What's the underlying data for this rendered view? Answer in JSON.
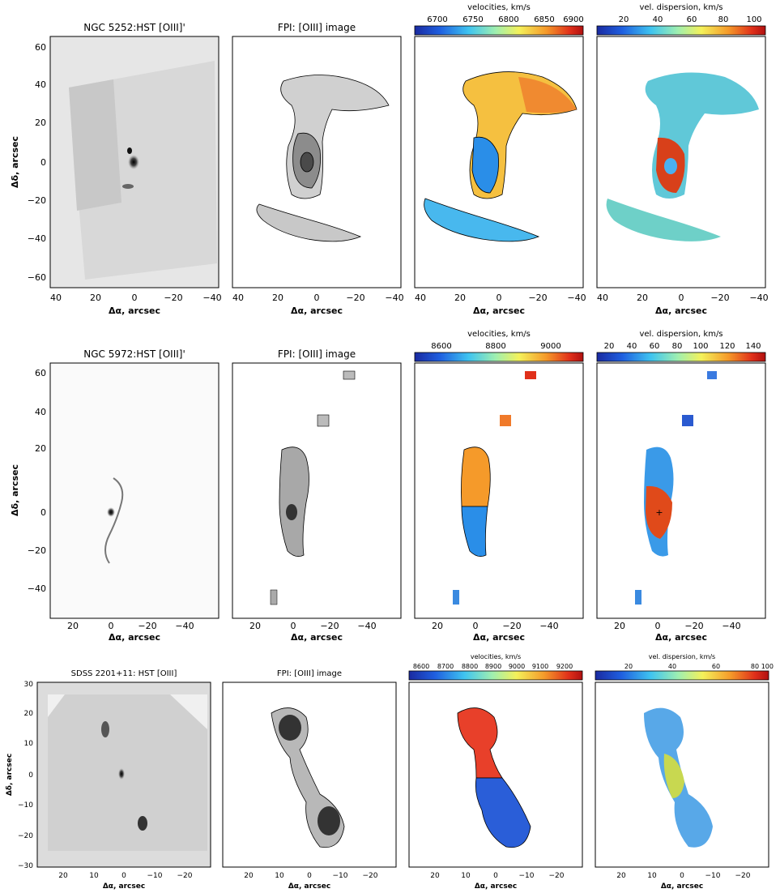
{
  "rows": [
    {
      "hst_title": "NGC 5252:HST [OIII]'",
      "fpi_title": "FPI: [OIII] image",
      "vel_label": "velocities, km/s",
      "vel_ticks": [
        "6700",
        "6750",
        "6800",
        "6850",
        "6900"
      ],
      "disp_label": "vel. dispersion, km/s",
      "disp_ticks": [
        "20",
        "40",
        "60",
        "80",
        "100"
      ],
      "xticks": [
        "40",
        "20",
        "0",
        "−20",
        "−40"
      ],
      "yticks": [
        "60",
        "40",
        "20",
        "0",
        "−20",
        "−40",
        "−60"
      ],
      "xlabel": "Δα, arcsec",
      "ylabel": "Δδ, arcsec"
    },
    {
      "hst_title": "NGC 5972:HST [OIII]'",
      "fpi_title": "FPI: [OIII] image",
      "vel_label": "velocities, km/s",
      "vel_ticks": [
        "8600",
        "8800",
        "9000"
      ],
      "disp_label": "vel. dispersion, km/s",
      "disp_ticks": [
        "20",
        "40",
        "60",
        "80",
        "100",
        "120",
        "140"
      ],
      "xticks": [
        "20",
        "0",
        "−20",
        "−40"
      ],
      "yticks": [
        "60",
        "40",
        "20",
        "0",
        "−20",
        "−40"
      ],
      "xlabel": "Δα, arcsec",
      "ylabel": "Δδ, arcsec"
    },
    {
      "hst_title": "SDSS 2201+11: HST [OIII]",
      "fpi_title": "FPI: [OIII] image",
      "vel_label": "velocities, km/s",
      "vel_ticks": [
        "8600",
        "8700",
        "8800",
        "8900",
        "9000",
        "9100",
        "9200"
      ],
      "disp_label": "vel. dispersion, km/s",
      "disp_ticks": [
        "20",
        "40",
        "60",
        "80",
        "100"
      ],
      "xticks": [
        "20",
        "10",
        "0",
        "−10",
        "−20"
      ],
      "yticks": [
        "30",
        "20",
        "10",
        "0",
        "−10",
        "−20",
        "−30"
      ],
      "xlabel": "Δα, arcsec",
      "ylabel": "Δδ, arcsec"
    }
  ]
}
